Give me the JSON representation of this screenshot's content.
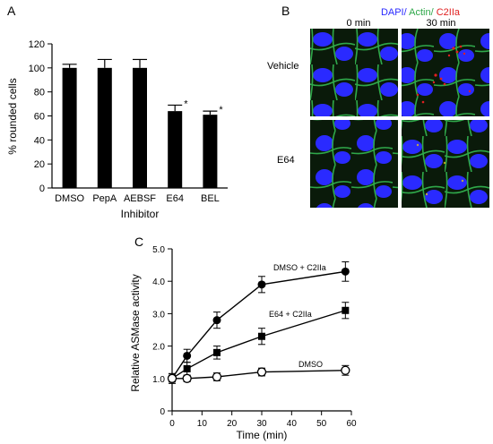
{
  "panels": {
    "a": "A",
    "b": "B",
    "c": "C"
  },
  "chart_data": [
    {
      "panel": "A",
      "type": "bar",
      "categories": [
        "DMSO",
        "PepA",
        "AEBSF",
        "E64",
        "BEL"
      ],
      "values": [
        100,
        100,
        100,
        64,
        61
      ],
      "errors": [
        3,
        7,
        7,
        5,
        3
      ],
      "annotations": [
        "",
        "",
        "",
        "*",
        "*"
      ],
      "title": "",
      "xlabel": "Inhibitor",
      "ylabel": "% rounded cells",
      "ylim": [
        0,
        120
      ],
      "yticks": [
        0,
        20,
        40,
        60,
        80,
        100,
        120
      ],
      "bar_color": "#000000"
    },
    {
      "panel": "C",
      "type": "line",
      "title": "",
      "xlabel": "Time (min)",
      "ylabel": "Relative ASMase activity",
      "xlim": [
        0,
        60
      ],
      "ylim": [
        0,
        5
      ],
      "xticks": [
        0,
        10,
        20,
        30,
        40,
        50,
        60
      ],
      "yticks": [
        "0",
        "1.0",
        "2.0",
        "3.0",
        "4.0",
        "5.0"
      ],
      "series": [
        {
          "name": "DMSO + C2IIa",
          "marker": "circle-filled",
          "x": [
            0,
            5,
            15,
            30,
            58
          ],
          "y": [
            1.0,
            1.7,
            2.8,
            3.9,
            4.3
          ],
          "err": [
            0.15,
            0.2,
            0.25,
            0.25,
            0.3
          ]
        },
        {
          "name": "E64 + C2IIa",
          "marker": "square-filled",
          "x": [
            0,
            5,
            15,
            30,
            58
          ],
          "y": [
            1.0,
            1.3,
            1.8,
            2.3,
            3.1
          ],
          "err": [
            0.15,
            0.2,
            0.2,
            0.25,
            0.25
          ]
        },
        {
          "name": "DMSO",
          "marker": "circle-open",
          "x": [
            0,
            5,
            15,
            30,
            58
          ],
          "y": [
            1.0,
            1.0,
            1.05,
            1.2,
            1.25
          ],
          "err": [
            0.1,
            0.1,
            0.12,
            0.12,
            0.15
          ]
        }
      ]
    }
  ],
  "micrograph": {
    "legend_dapi": "DAPI/",
    "legend_actin": " Actin/",
    "legend_c2iia": " C2IIa",
    "col_0": "0 min",
    "col_30": "30 min",
    "row_vehicle": "Vehicle",
    "row_e64": "E64",
    "colors": {
      "dapi": "#2a2aff",
      "actin": "#2fa84a",
      "c2iia": "#e02020",
      "background": "#0a1a0a"
    }
  }
}
